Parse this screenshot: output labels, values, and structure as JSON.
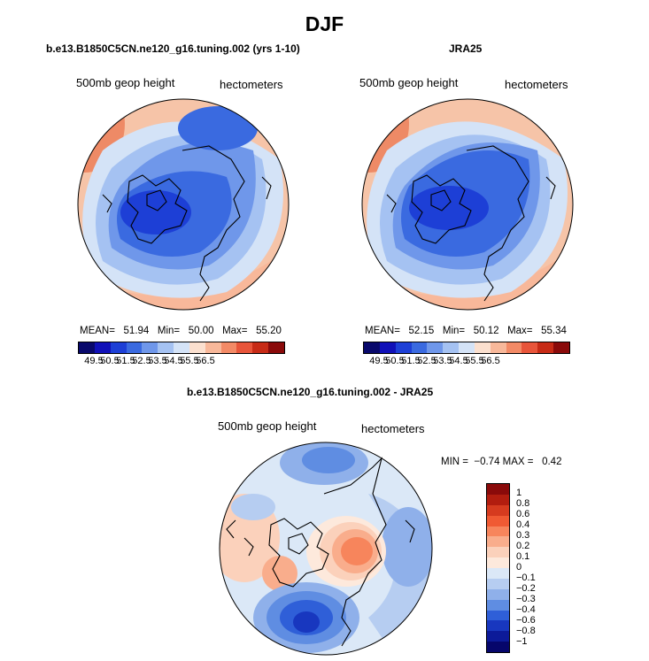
{
  "figure_title": "DJF",
  "panels": [
    {
      "title": "b.e13.B1850C5CN.ne120_g16.tuning.002 (yrs 1-10)",
      "left_label": "500mb geop height",
      "right_label": "hectometers",
      "stats": "MEAN=   51.94   Min=   50.00   Max=   55.20"
    },
    {
      "title": "JRA25",
      "left_label": "500mb geop height",
      "right_label": "hectometers",
      "stats": "MEAN=   52.15   Min=   50.12   Max=   55.34"
    }
  ],
  "colorbar_labels": [
    "49.5",
    "50.5",
    "51.5",
    "52.5",
    "53.5",
    "54.5",
    "55.5",
    "56.5"
  ],
  "colorbar_colors": [
    "#08086b",
    "#1010b8",
    "#1d3fd6",
    "#3a6ae0",
    "#6f97ea",
    "#a5c2f2",
    "#d4e3f7",
    "#fbe0cf",
    "#f8b89a",
    "#f38a66",
    "#e8553a",
    "#c72b16",
    "#8a0a0a"
  ],
  "diff": {
    "title": "b.e13.B1850C5CN.ne120_g16.tuning.002 - JRA25",
    "left_label": "500mb geop height",
    "right_label": "hectometers",
    "stats": "MIN =  −0.74 MAX =   0.42",
    "legend_labels": [
      "1",
      "0.8",
      "0.6",
      "0.4",
      "0.3",
      "0.2",
      "0.1",
      "0",
      "−0.1",
      "−0.2",
      "−0.3",
      "−0.4",
      "−0.6",
      "−0.8",
      "−1"
    ],
    "legend_colors": [
      "#8a0a0a",
      "#b21d0f",
      "#d63b1f",
      "#f05a33",
      "#f7855c",
      "#f9ad8c",
      "#fbd1bb",
      "#fde9dc",
      "#dbe8f7",
      "#b6cdf1",
      "#8fb0ea",
      "#5f8de2",
      "#2f5fd8",
      "#1837bf",
      "#0c1a99",
      "#06066b"
    ]
  }
}
